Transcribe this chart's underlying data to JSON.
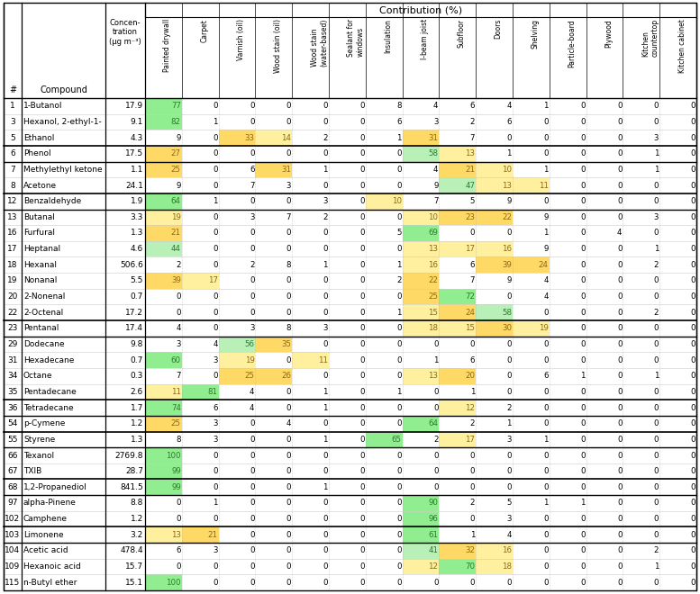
{
  "title": "Contribution (%)",
  "rows": [
    [
      "1",
      "1-Butanol",
      "17.9",
      77,
      0,
      0,
      0,
      0,
      0,
      8,
      4,
      6,
      4,
      1,
      0,
      0,
      0,
      0
    ],
    [
      "3",
      "Hexanol, 2-ethyl-1-",
      "9.1",
      82,
      1,
      0,
      0,
      0,
      0,
      6,
      3,
      2,
      6,
      0,
      0,
      0,
      0,
      0
    ],
    [
      "5",
      "Ethanol",
      "4.3",
      9,
      0,
      33,
      14,
      2,
      0,
      1,
      31,
      7,
      0,
      0,
      0,
      0,
      3,
      0
    ],
    [
      "6",
      "Phenol",
      "17.5",
      27,
      0,
      0,
      0,
      0,
      0,
      0,
      58,
      13,
      1,
      0,
      0,
      0,
      1,
      0
    ],
    [
      "7",
      "Methylethyl ketone",
      "1.1",
      25,
      0,
      6,
      31,
      1,
      0,
      0,
      4,
      21,
      10,
      1,
      0,
      0,
      1,
      0
    ],
    [
      "8",
      "Acetone",
      "24.1",
      9,
      0,
      7,
      3,
      0,
      0,
      0,
      9,
      47,
      13,
      11,
      0,
      0,
      0,
      0
    ],
    [
      "12",
      "Benzaldehyde",
      "1.9",
      64,
      1,
      0,
      0,
      3,
      0,
      10,
      7,
      5,
      9,
      0,
      0,
      0,
      0,
      0
    ],
    [
      "13",
      "Butanal",
      "3.3",
      19,
      0,
      3,
      7,
      2,
      0,
      0,
      10,
      23,
      22,
      9,
      0,
      0,
      3,
      0
    ],
    [
      "16",
      "Furfural",
      "1.3",
      21,
      0,
      0,
      0,
      0,
      0,
      5,
      69,
      0,
      0,
      1,
      0,
      4,
      0,
      0
    ],
    [
      "17",
      "Heptanal",
      "4.6",
      44,
      0,
      0,
      0,
      0,
      0,
      0,
      13,
      17,
      16,
      9,
      0,
      0,
      1,
      0
    ],
    [
      "18",
      "Hexanal",
      "506.6",
      2,
      0,
      2,
      8,
      1,
      0,
      1,
      16,
      6,
      39,
      24,
      0,
      0,
      2,
      0
    ],
    [
      "19",
      "Nonanal",
      "5.5",
      39,
      17,
      0,
      0,
      0,
      0,
      2,
      22,
      7,
      9,
      4,
      0,
      0,
      0,
      0
    ],
    [
      "20",
      "2-Nonenal",
      "0.7",
      0,
      0,
      0,
      0,
      0,
      0,
      0,
      25,
      72,
      0,
      4,
      0,
      0,
      0,
      0
    ],
    [
      "22",
      "2-Octenal",
      "17.2",
      0,
      0,
      0,
      0,
      0,
      0,
      1,
      15,
      24,
      58,
      0,
      0,
      0,
      2,
      0
    ],
    [
      "23",
      "Pentanal",
      "17.4",
      4,
      0,
      3,
      8,
      3,
      0,
      0,
      18,
      15,
      30,
      19,
      0,
      0,
      0,
      0
    ],
    [
      "29",
      "Dodecane",
      "9.8",
      3,
      4,
      56,
      35,
      0,
      0,
      0,
      0,
      0,
      0,
      0,
      0,
      0,
      0,
      0
    ],
    [
      "31",
      "Hexadecane",
      "0.7",
      60,
      3,
      19,
      0,
      11,
      0,
      0,
      1,
      6,
      0,
      0,
      0,
      0,
      0,
      0
    ],
    [
      "34",
      "Octane",
      "0.3",
      7,
      0,
      25,
      26,
      0,
      0,
      0,
      13,
      20,
      0,
      6,
      1,
      0,
      1,
      0
    ],
    [
      "35",
      "Pentadecane",
      "2.6",
      11,
      81,
      4,
      0,
      1,
      0,
      1,
      0,
      1,
      0,
      0,
      0,
      0,
      0,
      0
    ],
    [
      "36",
      "Tetradecane",
      "1.7",
      74,
      6,
      4,
      0,
      1,
      0,
      0,
      0,
      12,
      2,
      0,
      0,
      0,
      0,
      0
    ],
    [
      "54",
      "p-Cymene",
      "1.2",
      25,
      3,
      0,
      4,
      0,
      0,
      0,
      64,
      2,
      1,
      0,
      0,
      0,
      0,
      0
    ],
    [
      "55",
      "Styrene",
      "1.3",
      8,
      3,
      0,
      0,
      1,
      0,
      65,
      2,
      17,
      3,
      1,
      0,
      0,
      0,
      0
    ],
    [
      "66",
      "Texanol",
      "2769.8",
      100,
      0,
      0,
      0,
      0,
      0,
      0,
      0,
      0,
      0,
      0,
      0,
      0,
      0,
      0
    ],
    [
      "67",
      "TXIB",
      "28.7",
      99,
      0,
      0,
      0,
      0,
      0,
      0,
      0,
      0,
      0,
      0,
      0,
      0,
      0,
      0
    ],
    [
      "68",
      "1,2-Propanediol",
      "841.5",
      99,
      0,
      0,
      0,
      1,
      0,
      0,
      0,
      0,
      0,
      0,
      0,
      0,
      0,
      0
    ],
    [
      "97",
      "alpha-Pinene",
      "8.8",
      0,
      1,
      0,
      0,
      0,
      0,
      0,
      90,
      2,
      5,
      1,
      1,
      0,
      0,
      0
    ],
    [
      "102",
      "Camphene",
      "1.2",
      0,
      0,
      0,
      0,
      0,
      0,
      0,
      96,
      0,
      3,
      0,
      0,
      0,
      0,
      0
    ],
    [
      "103",
      "Limonene",
      "3.2",
      13,
      21,
      0,
      0,
      0,
      0,
      0,
      61,
      1,
      4,
      0,
      0,
      0,
      0,
      0
    ],
    [
      "104",
      "Acetic acid",
      "478.4",
      6,
      3,
      0,
      0,
      0,
      0,
      0,
      41,
      32,
      16,
      0,
      0,
      0,
      2,
      0
    ],
    [
      "109",
      "Hexanoic acid",
      "15.7",
      0,
      0,
      0,
      0,
      0,
      0,
      0,
      12,
      70,
      18,
      0,
      0,
      0,
      1,
      0
    ],
    [
      "115",
      "n-Butyl ether",
      "15.1",
      100,
      0,
      0,
      0,
      0,
      0,
      0,
      0,
      0,
      0,
      0,
      0,
      0,
      0,
      0
    ]
  ],
  "group_separators_after": [
    3,
    6,
    14,
    19,
    21,
    24,
    27
  ],
  "data_col_headers": [
    "Painted drywall",
    "Carpet",
    "Varnish (oil)",
    "Wood stain (oil)",
    "Wood stain\n(water-based)",
    "Sealant for\nwindows",
    "Insulation",
    "I-beam joist",
    "Subfloor",
    "Doors",
    "Shelving",
    "Particle-board",
    "Plywood",
    "Kitchen\ncountertop",
    "Kitchen cabinet"
  ]
}
